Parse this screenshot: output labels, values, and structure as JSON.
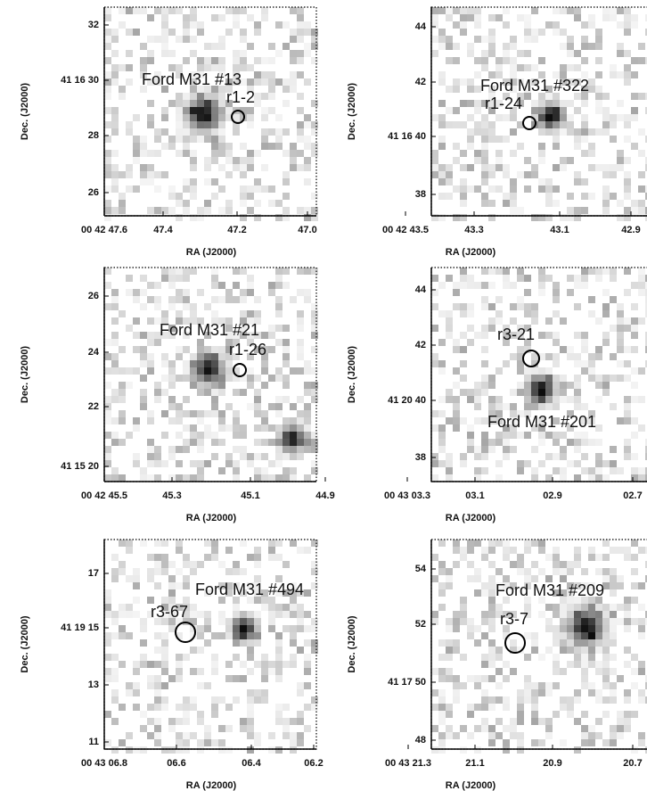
{
  "panels": [
    {
      "source_label": "Ford M31 #13",
      "circle_label": "r1-2",
      "yticks": [
        "32",
        "41 16 30",
        "28",
        "26"
      ],
      "xticks": [
        "00 42 47.6",
        "47.4",
        "47.2",
        "47.0"
      ],
      "xlabel": "RA (J2000)",
      "ylabel": "Dec. (J2000)"
    },
    {
      "source_label": "Ford M31 #322",
      "circle_label": "r1-24",
      "yticks": [
        "44",
        "42",
        "41 16 40",
        "38"
      ],
      "xticks": [
        "00 42 43.5",
        "43.3",
        "43.1",
        "42.9"
      ],
      "xlabel": "RA (J2000)",
      "ylabel": "Dec. (J2000)"
    },
    {
      "source_label": "Ford M31 #21",
      "circle_label": "r1-26",
      "yticks": [
        "26",
        "24",
        "22",
        "41 15 20"
      ],
      "xticks": [
        "00 42 45.5",
        "45.3",
        "45.1",
        "44.9"
      ],
      "xlabel": "RA (J2000)",
      "ylabel": "Dec. (J2000)"
    },
    {
      "source_label": "Ford M31 #201",
      "circle_label": "r3-21",
      "yticks": [
        "44",
        "42",
        "41 20 40",
        "38"
      ],
      "xticks": [
        "00 43 03.3",
        "03.1",
        "02.9",
        "02.7"
      ],
      "xlabel": "RA (J2000)",
      "ylabel": "Dec. (J2000)"
    },
    {
      "source_label": "Ford M31 #494",
      "circle_label": "r3-67",
      "yticks": [
        "17",
        "41 19 15",
        "13",
        "11"
      ],
      "xticks": [
        "00 43 06.8",
        "06.6",
        "06.4",
        "06.2"
      ],
      "xlabel": "RA (J2000)",
      "ylabel": "Dec. (J2000)"
    },
    {
      "source_label": "Ford M31 #209",
      "circle_label": "r3-7",
      "yticks": [
        "54",
        "52",
        "41 17 50",
        "48"
      ],
      "xticks": [
        "00 43 21.3",
        "21.1",
        "20.9",
        "20.7"
      ],
      "xlabel": "RA (J2000)",
      "ylabel": "Dec. (J2000)"
    }
  ]
}
